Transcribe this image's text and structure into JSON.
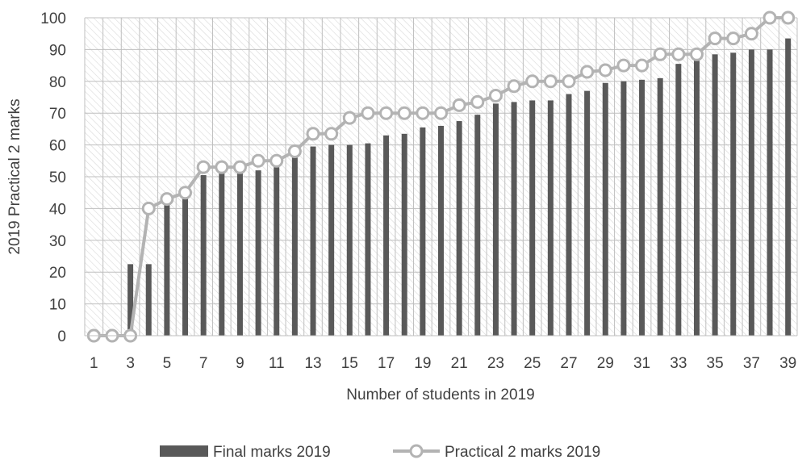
{
  "chart_data": {
    "type": "bar",
    "title": "",
    "xlabel": "Number of students in 2019",
    "ylabel": "2019 Practical 2 marks",
    "ylim": [
      0,
      100
    ],
    "yticks": [
      0,
      10,
      20,
      30,
      40,
      50,
      60,
      70,
      80,
      90,
      100
    ],
    "x": [
      1,
      2,
      3,
      4,
      5,
      6,
      7,
      8,
      9,
      10,
      11,
      12,
      13,
      14,
      15,
      16,
      17,
      18,
      19,
      20,
      21,
      22,
      23,
      24,
      25,
      26,
      27,
      28,
      29,
      30,
      31,
      32,
      33,
      34,
      35,
      36,
      37,
      38,
      39
    ],
    "xtick_labels": [
      "1",
      "3",
      "5",
      "7",
      "9",
      "11",
      "13",
      "15",
      "17",
      "19",
      "21",
      "23",
      "25",
      "27",
      "29",
      "31",
      "33",
      "35",
      "37",
      "39"
    ],
    "grid": true,
    "legend_position": "bottom",
    "series": [
      {
        "name": "Final marks 2019",
        "kind": "bar",
        "color": "#595959",
        "values": [
          0,
          0,
          22.5,
          22.5,
          41,
          43,
          50.5,
          51,
          51,
          52,
          53,
          56,
          59.5,
          60,
          60,
          60.5,
          63,
          63.5,
          65.5,
          66,
          67.5,
          69.5,
          73,
          73.5,
          74,
          74,
          76,
          77,
          79.5,
          80,
          80.5,
          81,
          85.5,
          86.5,
          88.5,
          89,
          90,
          90,
          93.5
        ]
      },
      {
        "name": "Practical 2 marks 2019",
        "kind": "line",
        "color": "#b3b3b3",
        "values": [
          0,
          0,
          0,
          40,
          43,
          45,
          53,
          53,
          53,
          55,
          55,
          58,
          63.5,
          63.5,
          68.5,
          70,
          70,
          70,
          70,
          70,
          72.5,
          73.5,
          75.5,
          78.5,
          80,
          80,
          80,
          83,
          83.5,
          85,
          85,
          88.5,
          88.5,
          88.5,
          93.5,
          93.5,
          95,
          100,
          100
        ]
      }
    ]
  }
}
